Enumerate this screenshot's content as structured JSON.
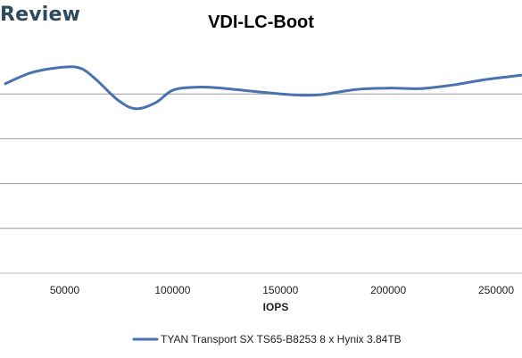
{
  "brand": "Review",
  "chart_data": {
    "type": "line",
    "title": "VDI-LC-Boot",
    "xlabel": "IOPS",
    "ylabel": "",
    "xlim": [
      20000,
      262000
    ],
    "x_ticks": [
      50000,
      100000,
      150000,
      200000,
      250000
    ],
    "x_tick_labels": [
      "50000",
      "100000",
      "150000",
      "200000",
      "250000"
    ],
    "ylim": [
      0,
      5
    ],
    "y_ticks": [
      0,
      1,
      2,
      3,
      4,
      5
    ],
    "grid": "horizontal",
    "legend_position": "bottom",
    "series": [
      {
        "name": "TYAN Transport SX TS65-B8253 8 x Hynix 3.84TB",
        "color": "#4a72b0",
        "x": [
          22000,
          35000,
          50000,
          58000,
          65000,
          75000,
          83000,
          92000,
          100000,
          110000,
          120000,
          135000,
          150000,
          160000,
          170000,
          185000,
          200000,
          215000,
          230000,
          245000,
          262000
        ],
        "y": [
          4.22,
          4.48,
          4.6,
          4.56,
          4.3,
          3.85,
          3.67,
          3.8,
          4.08,
          4.15,
          4.14,
          4.07,
          4.0,
          3.97,
          3.99,
          4.1,
          4.13,
          4.12,
          4.2,
          4.32,
          4.42
        ]
      }
    ]
  }
}
